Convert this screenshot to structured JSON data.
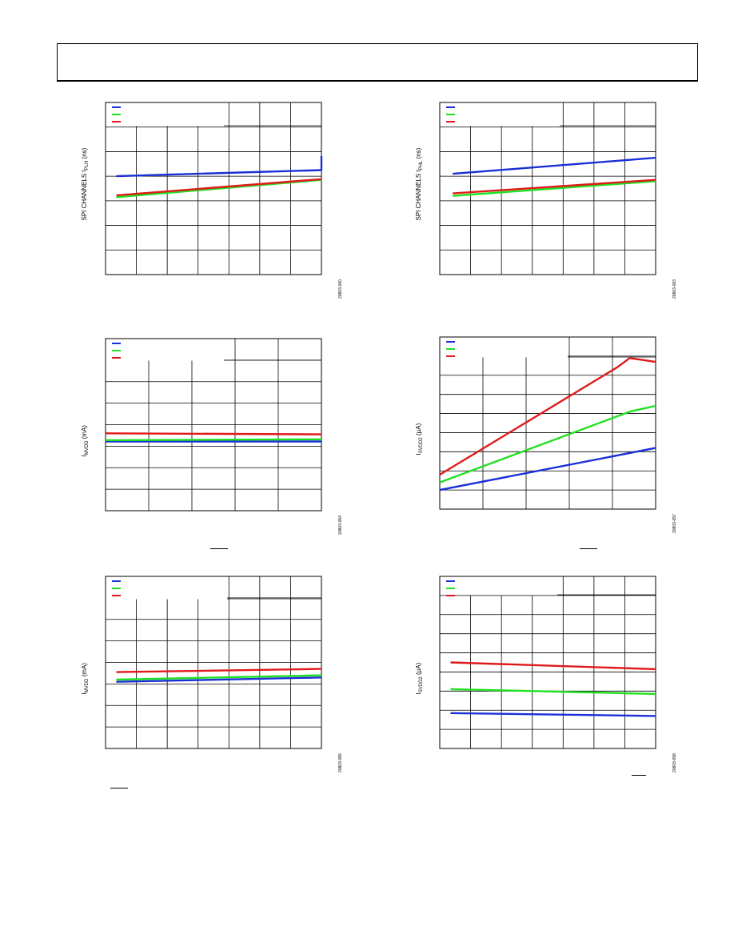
{
  "page": {
    "header_text": ""
  },
  "chart_data": [
    {
      "type": "line",
      "panel_id": "c1",
      "ylabel_main": "SPI CHANNELS t",
      "ylabel_sub": "PLH",
      "ylabel_unit": " (ns)",
      "fignum": "20803-060",
      "x_divs": 7,
      "y_divs": 7,
      "legend_cols": 4,
      "legend_rows": 1,
      "ylim": [
        0,
        7
      ],
      "series": [
        {
          "color": "#1a2fd6",
          "x": [
            0.05,
            1,
            1
          ],
          "y": [
            4.0,
            4.25,
            4.82
          ]
        },
        {
          "color": "#20e020",
          "x": [
            0.05,
            1
          ],
          "y": [
            3.15,
            3.85
          ]
        },
        {
          "color": "#e01a1a",
          "x": [
            0.05,
            1
          ],
          "y": [
            3.22,
            3.88
          ]
        }
      ]
    },
    {
      "type": "line",
      "panel_id": "c2",
      "ylabel_main": "SPI CHANNELS t",
      "ylabel_sub": "PHL",
      "ylabel_unit": " (ns)",
      "fignum": "20803-063",
      "x_divs": 7,
      "y_divs": 7,
      "legend_cols": 4,
      "legend_rows": 1,
      "ylim": [
        0,
        7
      ],
      "series": [
        {
          "color": "#1a2fd6",
          "x": [
            0.06,
            1
          ],
          "y": [
            4.1,
            4.75
          ]
        },
        {
          "color": "#20e020",
          "x": [
            0.06,
            1
          ],
          "y": [
            3.2,
            3.8
          ]
        },
        {
          "color": "#e01a1a",
          "x": [
            0.06,
            1
          ],
          "y": [
            3.3,
            3.85
          ]
        }
      ]
    },
    {
      "type": "line",
      "panel_id": "c3",
      "ylabel_main": "I",
      "ylabel_sub": "MVDD",
      "ylabel_unit": " (mA)",
      "fignum": "20803-054",
      "x_divs": 5,
      "y_divs": 8,
      "legend_cols": 3,
      "legend_rows": 1,
      "ylim": [
        0,
        8
      ],
      "series": [
        {
          "color": "#1a2fd6",
          "x": [
            0,
            1
          ],
          "y": [
            3.22,
            3.22
          ]
        },
        {
          "color": "#20e020",
          "x": [
            0,
            1
          ],
          "y": [
            3.28,
            3.32
          ]
        },
        {
          "color": "#e01a1a",
          "x": [
            0,
            1
          ],
          "y": [
            3.6,
            3.55
          ]
        }
      ]
    },
    {
      "type": "line",
      "panel_id": "c4",
      "ylabel_main": "I",
      "ylabel_sub": "SVDD2",
      "ylabel_unit": " (µA)",
      "fignum": "20803-057",
      "x_divs": 5,
      "y_divs": 9,
      "legend_cols": 3,
      "legend_rows": 1,
      "ylim": [
        0,
        9
      ],
      "series": [
        {
          "color": "#1a2fd6",
          "x": [
            0,
            1
          ],
          "y": [
            1.0,
            3.2
          ]
        },
        {
          "color": "#20e020",
          "x": [
            0,
            0.88,
            1
          ],
          "y": [
            1.4,
            5.1,
            5.4
          ]
        },
        {
          "color": "#e01a1a",
          "x": [
            0,
            0.82,
            0.88,
            1
          ],
          "y": [
            1.8,
            7.4,
            7.9,
            7.7
          ]
        }
      ]
    },
    {
      "type": "line",
      "panel_id": "c5",
      "ylabel_main": "I",
      "ylabel_sub": "MVDD",
      "ylabel_unit": " (mA)",
      "fignum": "20803-055",
      "x_divs": 7,
      "y_divs": 8,
      "legend_cols": 4,
      "legend_rows": 1,
      "ylim": [
        0,
        8
      ],
      "series": [
        {
          "color": "#1a2fd6",
          "x": [
            0.05,
            1
          ],
          "y": [
            3.1,
            3.3
          ]
        },
        {
          "color": "#20e020",
          "x": [
            0.05,
            1
          ],
          "y": [
            3.2,
            3.4
          ]
        },
        {
          "color": "#e01a1a",
          "x": [
            0.05,
            1
          ],
          "y": [
            3.55,
            3.7
          ]
        }
      ]
    },
    {
      "type": "line",
      "panel_id": "c6",
      "ylabel_main": "I",
      "ylabel_sub": "SVDD2",
      "ylabel_unit": " (µA)",
      "fignum": "20803-058",
      "x_divs": 7,
      "y_divs": 9,
      "legend_cols": 4,
      "legend_rows": 1,
      "ylim": [
        0,
        9
      ],
      "series": [
        {
          "color": "#1a2fd6",
          "x": [
            0.05,
            1
          ],
          "y": [
            1.85,
            1.7
          ]
        },
        {
          "color": "#20e020",
          "x": [
            0.05,
            1
          ],
          "y": [
            3.1,
            2.85
          ]
        },
        {
          "color": "#e01a1a",
          "x": [
            0.05,
            1
          ],
          "y": [
            4.5,
            4.15
          ]
        }
      ]
    }
  ]
}
